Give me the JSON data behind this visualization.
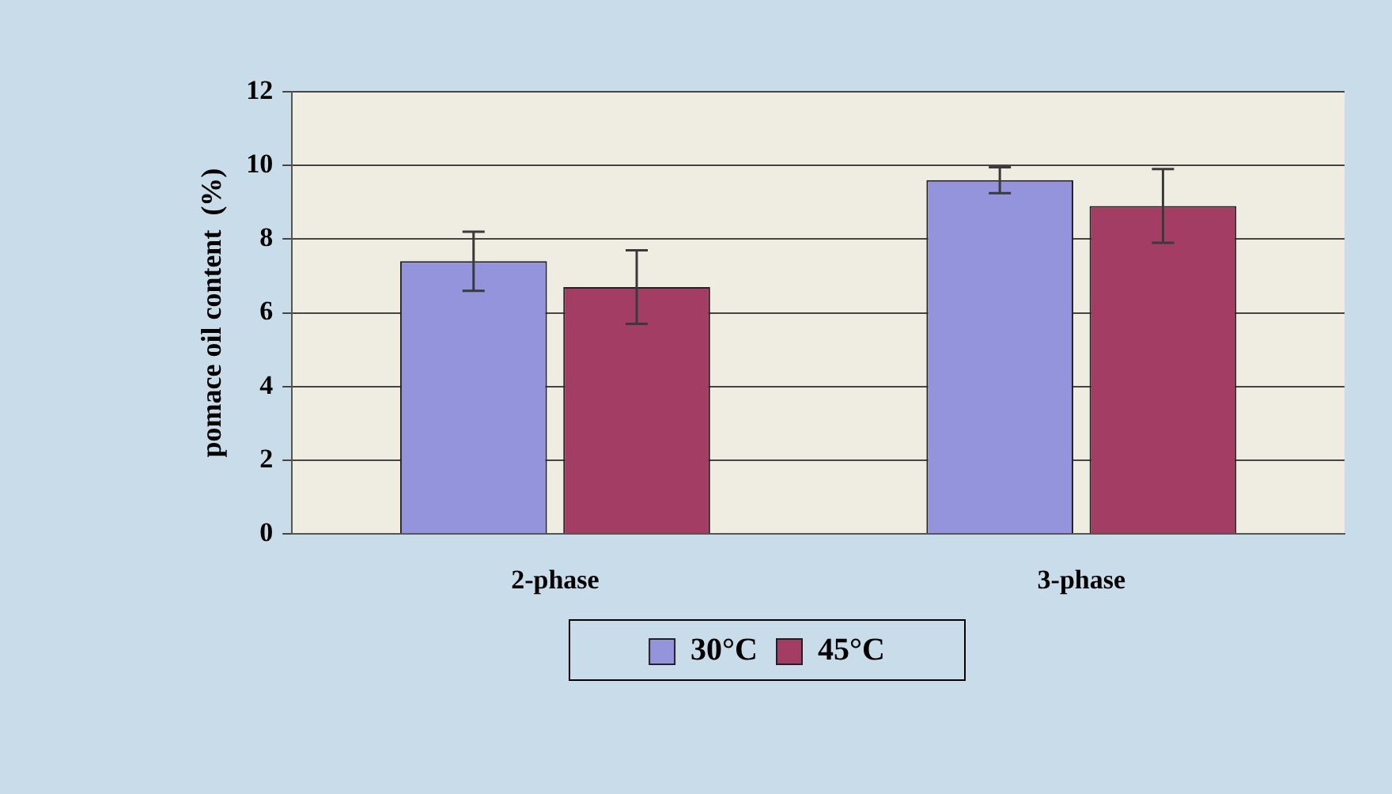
{
  "chart_data": {
    "type": "bar",
    "ylabel": "pomace oil content  (%)",
    "categories": [
      "2-phase",
      "3-phase"
    ],
    "series": [
      {
        "name": "30°C",
        "color": "#9494dc",
        "values": [
          7.4,
          9.6
        ],
        "errors": [
          0.8,
          0.35
        ]
      },
      {
        "name": "45°C",
        "color": "#a43d64",
        "values": [
          6.7,
          8.9
        ],
        "errors": [
          1.0,
          1.0
        ]
      }
    ],
    "ylim": [
      0,
      12
    ],
    "yticks": [
      0,
      2,
      4,
      6,
      8,
      10,
      12
    ],
    "grid": "y",
    "legend": "bottom"
  }
}
